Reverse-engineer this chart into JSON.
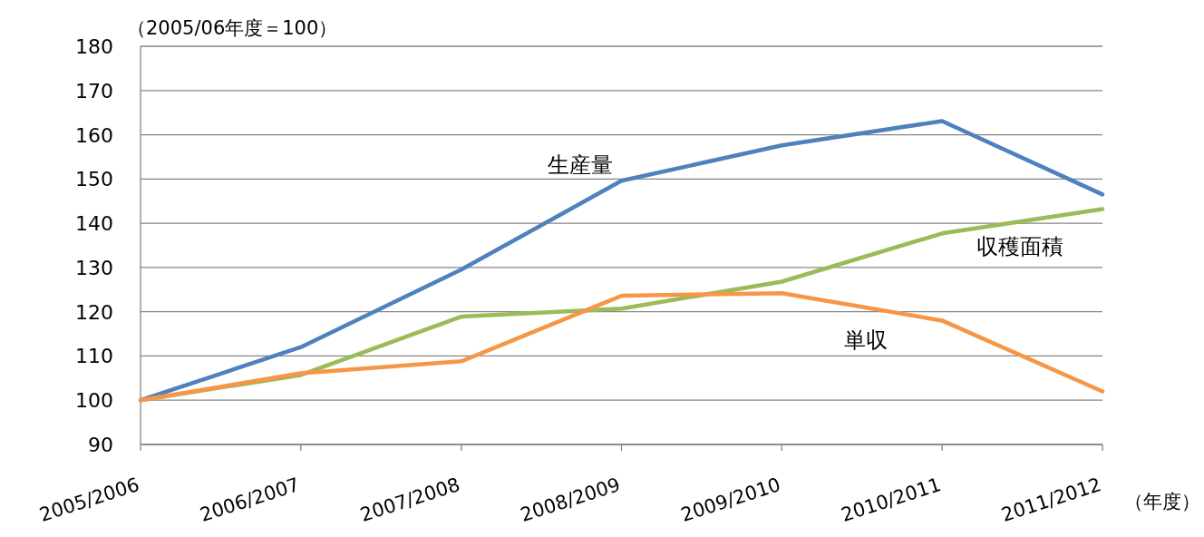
{
  "chart_data": {
    "type": "line",
    "ylabel": "（2005/06年度＝100）",
    "xlabel": "（年度）",
    "categories": [
      "2005/2006",
      "2006/2007",
      "2007/2008",
      "2008/2009",
      "2009/2010",
      "2010/2011",
      "2011/2012"
    ],
    "series": [
      {
        "name": "生産量",
        "color": "#4f81bd",
        "values": [
          100,
          112,
          129.5,
          149.6,
          157.6,
          163.1,
          146.5
        ]
      },
      {
        "name": "収穫面積",
        "color": "#9bbb59",
        "values": [
          100,
          105.7,
          118.9,
          120.7,
          126.8,
          137.7,
          143.2
        ]
      },
      {
        "name": "単収",
        "color": "#f79646",
        "values": [
          100,
          106.1,
          108.8,
          123.6,
          124.2,
          118,
          102
        ]
      }
    ],
    "ylim": [
      90,
      180
    ],
    "yticks": [
      90,
      100,
      110,
      120,
      130,
      140,
      150,
      160,
      170,
      180
    ],
    "grid": "y",
    "legend": false,
    "marker": "none",
    "line_style": "solid"
  }
}
